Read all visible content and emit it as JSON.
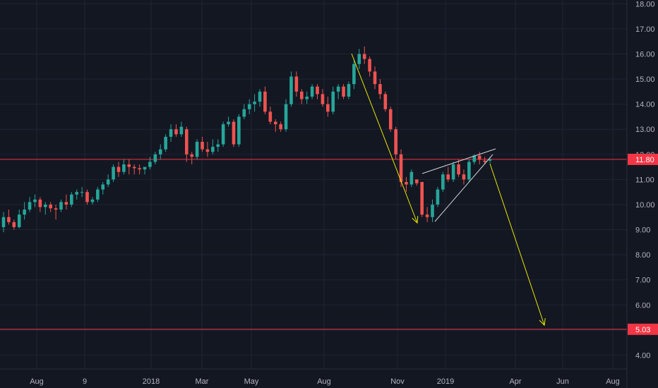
{
  "chart_data": {
    "type": "candlestick",
    "x_axis": {
      "tick_labels": [
        "Aug",
        "9",
        "2018",
        "Mar",
        "May",
        "Aug",
        "Nov",
        "2019",
        "Apr",
        "Jun",
        "Aug"
      ]
    },
    "y_axis": {
      "ylim": [
        3.45,
        18.15
      ],
      "tick_values": [
        4,
        5,
        6,
        7,
        8,
        9,
        10,
        11,
        12,
        13,
        14,
        15,
        16,
        17,
        18
      ],
      "tick_labels": [
        "4.00",
        "5.00",
        "6.00",
        "7.00",
        "8.00",
        "9.00",
        "10.00",
        "11.00",
        "12.00",
        "13.00",
        "14.00",
        "15.00",
        "16.00",
        "17.00",
        "18.00"
      ]
    },
    "series": [
      {
        "values": [
          [
            9.1,
            9.7,
            8.9,
            9.5
          ],
          [
            9.5,
            9.8,
            9.2,
            9.3
          ],
          [
            9.3,
            9.4,
            9.0,
            9.1
          ],
          [
            9.1,
            9.8,
            9.05,
            9.6
          ],
          [
            9.6,
            10.1,
            9.4,
            9.8
          ],
          [
            9.8,
            10.3,
            9.7,
            10.1
          ],
          [
            10.1,
            10.4,
            9.9,
            10.2
          ],
          [
            10.2,
            10.3,
            9.7,
            9.9
          ],
          [
            9.9,
            10.1,
            9.6,
            10.0
          ],
          [
            10.0,
            10.1,
            9.7,
            9.85
          ],
          [
            9.85,
            10.0,
            9.4,
            9.8
          ],
          [
            9.8,
            10.2,
            9.7,
            10.1
          ],
          [
            10.1,
            10.4,
            9.8,
            10.0
          ],
          [
            10.0,
            10.5,
            9.9,
            10.4
          ],
          [
            10.4,
            10.6,
            10.2,
            10.5
          ],
          [
            10.5,
            10.7,
            10.3,
            10.5
          ],
          [
            10.5,
            10.6,
            10.0,
            10.1
          ],
          [
            10.1,
            10.3,
            10.0,
            10.2
          ],
          [
            10.2,
            10.7,
            10.1,
            10.6
          ],
          [
            10.6,
            10.9,
            10.4,
            10.8
          ],
          [
            10.8,
            11.2,
            10.7,
            11.0
          ],
          [
            11.0,
            11.6,
            10.9,
            11.5
          ],
          [
            11.5,
            11.7,
            11.1,
            11.3
          ],
          [
            11.3,
            11.8,
            11.2,
            11.6
          ],
          [
            11.6,
            11.8,
            11.2,
            11.5
          ],
          [
            11.5,
            11.6,
            11.2,
            11.45
          ],
          [
            11.45,
            11.6,
            11.2,
            11.4
          ],
          [
            11.4,
            11.5,
            11.2,
            11.5
          ],
          [
            11.5,
            11.9,
            11.4,
            11.7
          ],
          [
            11.7,
            12.1,
            11.6,
            12.0
          ],
          [
            12.0,
            12.4,
            11.8,
            12.2
          ],
          [
            12.2,
            12.8,
            12.1,
            12.7
          ],
          [
            12.7,
            13.2,
            12.5,
            13.0
          ],
          [
            13.0,
            13.2,
            12.7,
            12.8
          ],
          [
            12.8,
            13.3,
            12.7,
            13.1
          ],
          [
            13.0,
            13.1,
            11.7,
            12.0
          ],
          [
            12.0,
            12.1,
            11.6,
            11.9
          ],
          [
            11.9,
            12.6,
            11.8,
            12.5
          ],
          [
            12.5,
            12.7,
            12.1,
            12.2
          ],
          [
            12.2,
            12.5,
            11.9,
            12.1
          ],
          [
            12.1,
            12.6,
            12.0,
            12.3
          ],
          [
            12.3,
            12.6,
            12.1,
            12.4
          ],
          [
            12.4,
            13.3,
            12.3,
            13.2
          ],
          [
            13.2,
            13.5,
            13.1,
            13.3
          ],
          [
            13.3,
            13.4,
            12.3,
            12.4
          ],
          [
            12.4,
            13.6,
            12.3,
            13.5
          ],
          [
            13.5,
            14.0,
            13.4,
            13.8
          ],
          [
            13.8,
            14.2,
            13.6,
            14.0
          ],
          [
            14.0,
            14.4,
            13.7,
            14.1
          ],
          [
            14.1,
            14.6,
            13.9,
            14.5
          ],
          [
            14.5,
            14.7,
            13.6,
            13.7
          ],
          [
            13.7,
            13.9,
            13.2,
            13.3
          ],
          [
            13.3,
            13.4,
            12.9,
            13.2
          ],
          [
            13.2,
            13.3,
            12.9,
            13.0
          ],
          [
            13.0,
            14.2,
            12.9,
            14.0
          ],
          [
            14.0,
            15.3,
            13.9,
            15.1
          ],
          [
            15.1,
            15.3,
            14.3,
            14.5
          ],
          [
            14.5,
            14.6,
            14.0,
            14.2
          ],
          [
            14.2,
            14.5,
            14.0,
            14.3
          ],
          [
            14.3,
            14.8,
            14.2,
            14.7
          ],
          [
            14.7,
            14.8,
            14.2,
            14.4
          ],
          [
            14.4,
            14.6,
            13.9,
            14.0
          ],
          [
            14.0,
            14.3,
            13.5,
            13.7
          ],
          [
            13.7,
            14.7,
            13.6,
            14.5
          ],
          [
            14.5,
            14.8,
            14.2,
            14.7
          ],
          [
            14.7,
            14.8,
            14.2,
            14.3
          ],
          [
            14.3,
            14.9,
            14.2,
            14.8
          ],
          [
            14.8,
            15.8,
            14.6,
            15.6
          ],
          [
            15.6,
            16.2,
            15.4,
            16.0
          ],
          [
            16.0,
            16.3,
            15.6,
            15.8
          ],
          [
            15.8,
            15.9,
            15.1,
            15.3
          ],
          [
            15.3,
            15.5,
            14.6,
            14.8
          ],
          [
            14.8,
            15.0,
            14.2,
            14.4
          ],
          [
            14.4,
            14.5,
            13.7,
            13.8
          ],
          [
            13.8,
            13.9,
            12.9,
            13.0
          ],
          [
            13.0,
            13.1,
            11.8,
            12.0
          ],
          [
            12.0,
            12.2,
            10.7,
            10.9
          ],
          [
            10.9,
            11.1,
            10.5,
            10.8
          ],
          [
            10.8,
            11.4,
            10.7,
            11.3
          ],
          [
            11.0,
            11.0,
            10.75,
            10.85
          ],
          [
            10.9,
            10.9,
            9.5,
            9.6
          ],
          [
            9.6,
            9.9,
            9.3,
            9.5
          ],
          [
            9.5,
            10.2,
            9.3,
            10.0
          ],
          [
            10.0,
            10.7,
            9.9,
            10.6
          ],
          [
            10.6,
            11.3,
            10.5,
            11.2
          ],
          [
            11.2,
            11.5,
            10.9,
            11.0
          ],
          [
            11.0,
            11.7,
            10.9,
            11.6
          ],
          [
            11.6,
            11.8,
            11.1,
            11.2
          ],
          [
            11.2,
            11.4,
            10.8,
            11.0
          ],
          [
            11.0,
            11.8,
            10.9,
            11.7
          ],
          [
            11.7,
            12.0,
            11.6,
            11.95
          ],
          [
            11.95,
            12.1,
            11.6,
            11.8
          ],
          [
            11.75,
            11.9,
            11.6,
            11.7
          ],
          [
            11.75,
            11.9,
            11.65,
            11.8
          ]
        ]
      }
    ],
    "horizontal_lines": [
      {
        "value": 11.8,
        "label": "11.80",
        "color": "#f23645"
      },
      {
        "value": 5.03,
        "label": "5.03",
        "color": "#f23645"
      }
    ],
    "colors": {
      "up": "#26a69a",
      "down": "#ef5350",
      "background": "#131722",
      "grid": "#1f2433",
      "annotation": "#e6e600",
      "wedge": "#d1d4dc"
    },
    "grid": true,
    "annotations": [
      "yellow downward arrow from August high to November low",
      "rising wedge lines Nov–Feb",
      "yellow projection arrow from wedge down to 5.03"
    ]
  }
}
